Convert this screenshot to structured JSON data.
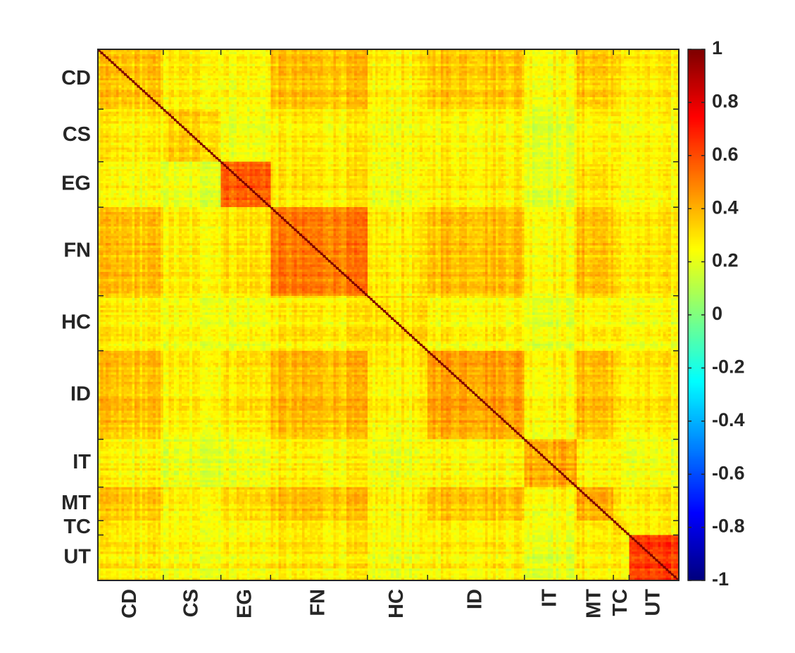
{
  "chart_data": {
    "type": "heatmap",
    "title": "",
    "xlabel": "",
    "ylabel": "",
    "grid": false,
    "colormap": "jet",
    "clim": [
      -1,
      1
    ],
    "colorbar": {
      "position": "right",
      "ticks": [
        1,
        0.8,
        0.6,
        0.4,
        0.2,
        0,
        -0.2,
        -0.4,
        -0.6,
        -0.8,
        -1
      ],
      "tick_labels": [
        "1",
        "0.8",
        "0.6",
        "0.4",
        "0.2",
        "0",
        "-0.2",
        "-0.4",
        "-0.6",
        "-0.8",
        "-1"
      ]
    },
    "diagonal_value": 1,
    "groups": [
      {
        "label": "CD",
        "size": 25
      },
      {
        "label": "CS",
        "size": 22
      },
      {
        "label": "EG",
        "size": 19
      },
      {
        "label": "FN",
        "size": 37
      },
      {
        "label": "HC",
        "size": 23
      },
      {
        "label": "ID",
        "size": 37
      },
      {
        "label": "IT",
        "size": 20
      },
      {
        "label": "MT",
        "size": 14
      },
      {
        "label": "TC",
        "size": 6
      },
      {
        "label": "UT",
        "size": 19
      }
    ],
    "block_means": {
      "rows": [
        "CD",
        "CS",
        "EG",
        "FN",
        "HC",
        "ID",
        "IT",
        "MT",
        "TC",
        "UT"
      ],
      "cols": [
        "CD",
        "CS",
        "EG",
        "FN",
        "HC",
        "ID",
        "IT",
        "MT",
        "TC",
        "UT"
      ],
      "values": [
        [
          0.35,
          0.27,
          0.25,
          0.36,
          0.27,
          0.36,
          0.25,
          0.35,
          0.28,
          0.27
        ],
        [
          0.27,
          0.33,
          0.22,
          0.27,
          0.24,
          0.27,
          0.2,
          0.27,
          0.24,
          0.24
        ],
        [
          0.25,
          0.22,
          0.58,
          0.3,
          0.24,
          0.3,
          0.22,
          0.32,
          0.25,
          0.26
        ],
        [
          0.36,
          0.27,
          0.3,
          0.5,
          0.28,
          0.38,
          0.26,
          0.37,
          0.28,
          0.28
        ],
        [
          0.27,
          0.24,
          0.24,
          0.28,
          0.3,
          0.27,
          0.22,
          0.27,
          0.25,
          0.23
        ],
        [
          0.36,
          0.27,
          0.3,
          0.38,
          0.27,
          0.44,
          0.27,
          0.38,
          0.28,
          0.28
        ],
        [
          0.25,
          0.2,
          0.22,
          0.26,
          0.22,
          0.27,
          0.42,
          0.26,
          0.24,
          0.21
        ],
        [
          0.35,
          0.27,
          0.32,
          0.37,
          0.27,
          0.38,
          0.26,
          0.42,
          0.28,
          0.28
        ],
        [
          0.28,
          0.24,
          0.25,
          0.28,
          0.25,
          0.28,
          0.24,
          0.28,
          0.32,
          0.26
        ],
        [
          0.27,
          0.24,
          0.26,
          0.28,
          0.23,
          0.28,
          0.21,
          0.28,
          0.26,
          0.62
        ]
      ]
    }
  }
}
